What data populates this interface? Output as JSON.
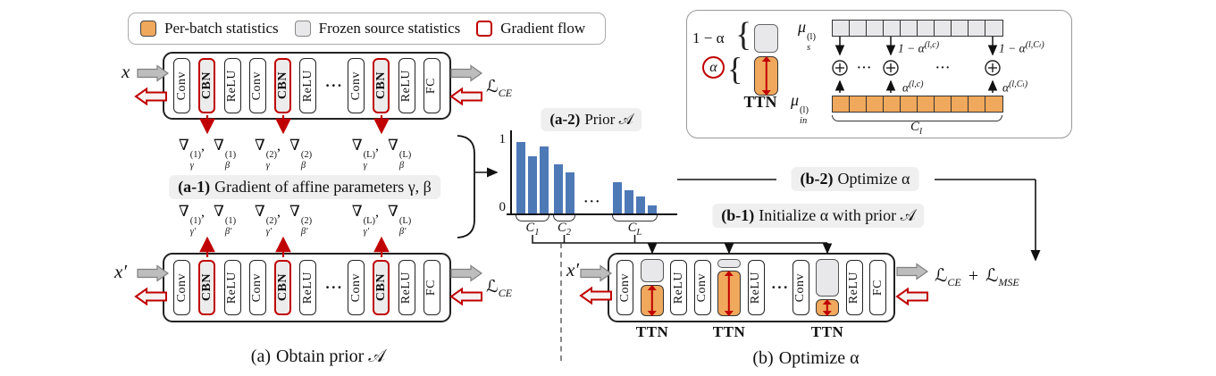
{
  "colors": {
    "per_batch_orange": "#F0A85C",
    "frozen_gray": "#E8E8EA",
    "gradient_red": "#C00000",
    "bar_blue": "#4E79B7",
    "label_bg": "#EFEFEF"
  },
  "legend": {
    "items": [
      {
        "label": "Per-batch statistics",
        "swatch": "orange-filled"
      },
      {
        "label": "Frozen source statistics",
        "swatch": "gray-filled"
      },
      {
        "label": "Gradient flow",
        "swatch": "red-outline"
      }
    ]
  },
  "networks": {
    "cbn_blocks": [
      {
        "label": "Conv",
        "kind": "plain"
      },
      {
        "label": "CBN",
        "kind": "cbn"
      },
      {
        "label": "ReLU",
        "kind": "plain"
      },
      {
        "label": "Conv",
        "kind": "plain"
      },
      {
        "label": "CBN",
        "kind": "cbn"
      },
      {
        "label": "ReLU",
        "kind": "plain"
      },
      {
        "label": "···",
        "kind": "dots"
      },
      {
        "label": "Conv",
        "kind": "plain"
      },
      {
        "label": "CBN",
        "kind": "cbn"
      },
      {
        "label": "ReLU",
        "kind": "plain"
      },
      {
        "label": "FC",
        "kind": "plain"
      }
    ],
    "ttn_blocks": [
      {
        "label": "Conv",
        "kind": "plain"
      },
      {
        "kind": "ttn",
        "gray_h": 26,
        "orange_h": 35
      },
      {
        "label": "ReLU",
        "kind": "plain"
      },
      {
        "label": "Conv",
        "kind": "plain"
      },
      {
        "kind": "ttn",
        "gray_h": 10,
        "orange_h": 51
      },
      {
        "label": "ReLU",
        "kind": "plain"
      },
      {
        "label": "···",
        "kind": "dots"
      },
      {
        "label": "Conv",
        "kind": "plain"
      },
      {
        "kind": "ttn",
        "gray_h": 42,
        "orange_h": 19
      },
      {
        "label": "ReLU",
        "kind": "plain"
      },
      {
        "label": "FC",
        "kind": "plain"
      }
    ],
    "top": {
      "input": "x",
      "loss": [
        {
          "base": "ℒ",
          "sub": "CE"
        }
      ],
      "loss_join": " + "
    },
    "bottom_left": {
      "input": "x′",
      "loss": [
        {
          "base": "ℒ",
          "sub": "CE"
        }
      ],
      "loss_join": " + "
    },
    "bottom_right": {
      "input": "x′",
      "loss": [
        {
          "base": "ℒ",
          "sub": "CE"
        },
        {
          "base": "ℒ",
          "sub": "MSE"
        }
      ],
      "loss_join": " + ",
      "ttn_label": "TTN"
    }
  },
  "gradients": {
    "nabla": "∇",
    "layers": [
      "(1)",
      "(2)",
      "(L)"
    ],
    "row_top_syms": [
      "γ",
      "β"
    ],
    "row_bottom_syms": [
      "γ′",
      "β′"
    ],
    "separator": ", "
  },
  "panel_labels": {
    "a1": {
      "tag": "(a-1)",
      "rest": "Gradient of affine parameters γ, β"
    },
    "b1": {
      "tag": "(b-1)",
      "rest": "Initialize α with prior 𝒜"
    },
    "b2": {
      "tag": "(b-2)",
      "rest": "Optimize α"
    }
  },
  "figure": {
    "caption_a": {
      "tag": "(a)",
      "rest": "Obtain prior 𝒜"
    },
    "caption_b": {
      "tag": "(b)",
      "rest": "Optimize α"
    }
  },
  "ttn_panel": {
    "one_minus_alpha": "1 − α",
    "alpha": "α",
    "brace": "{",
    "ttn": "TTN",
    "mu_s": {
      "base": "μ",
      "sup": "(l)",
      "sub": "s"
    },
    "mu_in": {
      "base": "μ",
      "sup": "(l)",
      "sub": "in"
    },
    "cells": 10,
    "label_down_mid": "1 − α",
    "label_down_mid_sup": "(l,c)",
    "label_down_end": "1 − α",
    "label_down_end_sup": "(l,Cₗ)",
    "label_up_mid": "α",
    "label_up_mid_sup": "(l,c)",
    "label_up_end": "α",
    "label_up_end_sup": "(l,Cₗ)",
    "plus": "⊕",
    "dots": "···",
    "c_l": {
      "base": "C",
      "sub": "l"
    }
  },
  "chart_data": {
    "type": "bar",
    "title": "(a-2) Prior 𝒜",
    "title_parts": {
      "tag": "(a-2)",
      "rest": "Prior 𝒜"
    },
    "ylim": [
      0,
      1
    ],
    "yticks": [
      0,
      1
    ],
    "grid": false,
    "legend_position": "none",
    "bar_color": "#4E79B7",
    "gap_dots": "···",
    "groups": [
      {
        "label": "C_1",
        "label_render": {
          "base": "C",
          "sub": "1"
        },
        "values": [
          0.91,
          0.73,
          0.85
        ]
      },
      {
        "label": "C_2",
        "label_render": {
          "base": "C",
          "sub": "2"
        },
        "values": [
          0.62,
          0.52
        ]
      },
      {
        "label": "C_L",
        "label_render": {
          "base": "C",
          "sub": "L"
        },
        "values": [
          0.4,
          0.3,
          0.22,
          0.1
        ]
      }
    ]
  }
}
